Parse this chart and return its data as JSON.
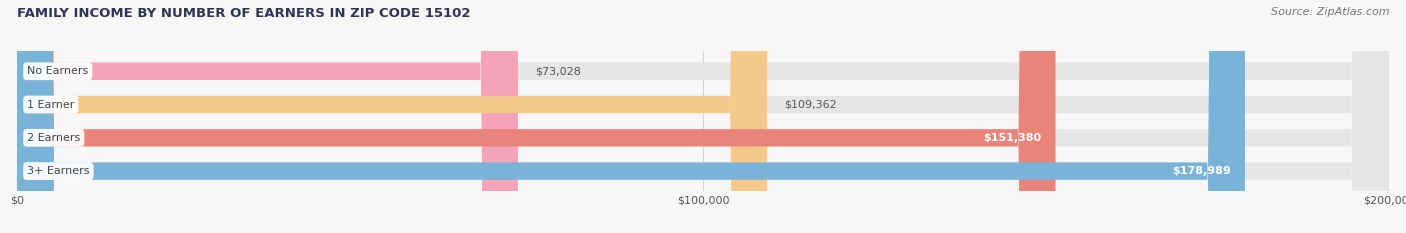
{
  "title": "FAMILY INCOME BY NUMBER OF EARNERS IN ZIP CODE 15102",
  "source": "Source: ZipAtlas.com",
  "categories": [
    "No Earners",
    "1 Earner",
    "2 Earners",
    "3+ Earners"
  ],
  "values": [
    73028,
    109362,
    151380,
    178989
  ],
  "bar_colors": [
    "#f4a3b8",
    "#f5c98a",
    "#e8847a",
    "#7ab3d8"
  ],
  "bar_bg_color": "#e5e5e5",
  "bg_color": "#f7f7f7",
  "title_color": "#333355",
  "source_color": "#777777",
  "label_bg_color": "#ffffff",
  "label_text_color": "#444444",
  "value_inside_color": "#ffffff",
  "value_outside_color": "#555555",
  "xlim": [
    0,
    200000
  ],
  "bar_height": 0.52,
  "title_fontsize": 9.5,
  "label_fontsize": 8.0,
  "value_fontsize": 8.0,
  "tick_fontsize": 8.0,
  "source_fontsize": 8.0,
  "value_inside_threshold": 140000
}
